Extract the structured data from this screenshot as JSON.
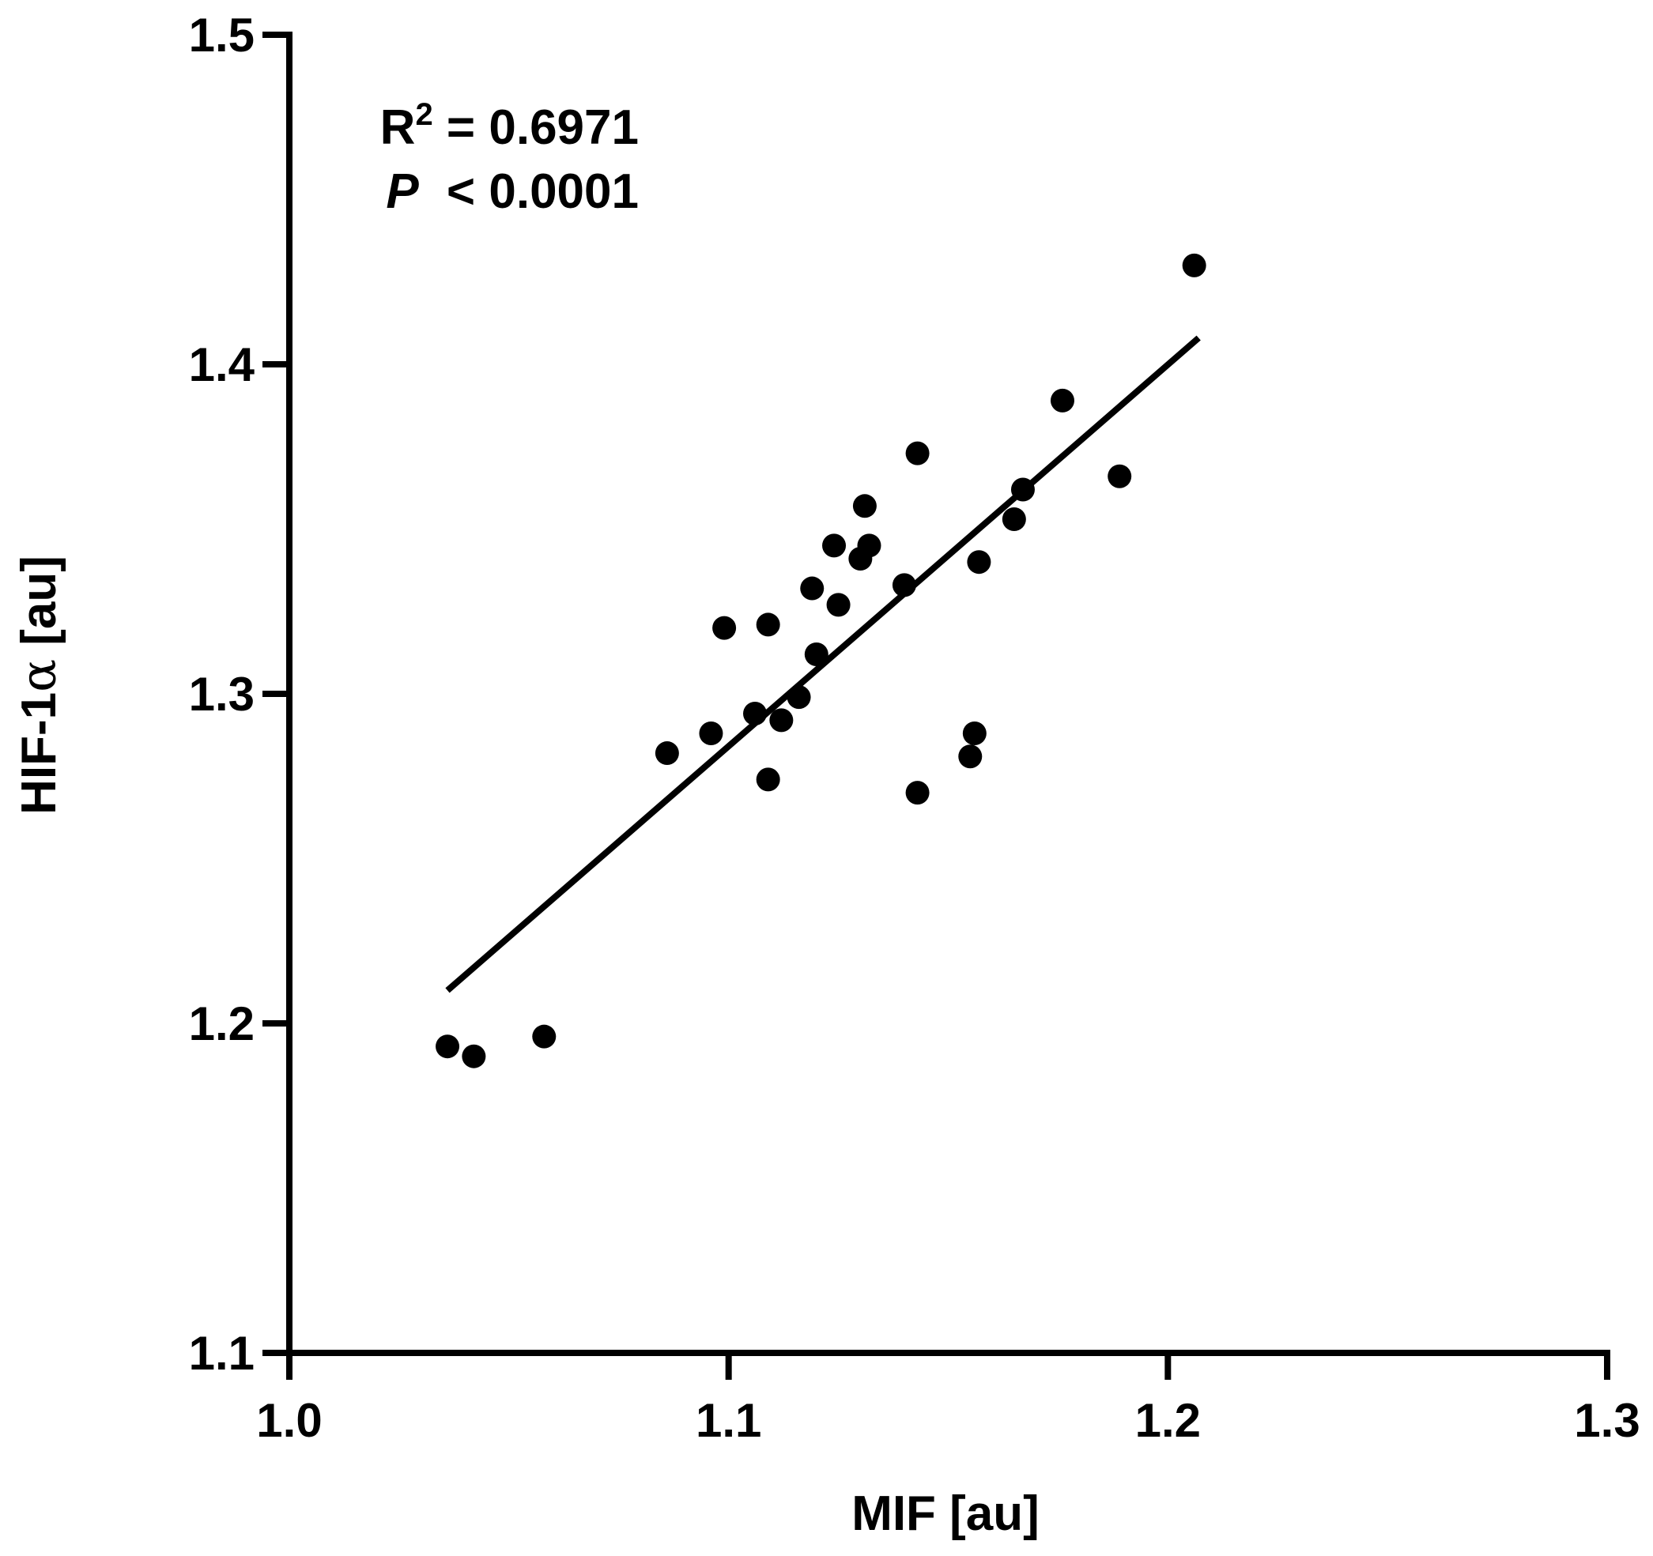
{
  "chart_data": {
    "type": "scatter",
    "xlabel": "MIF [au]",
    "ylabel_prefix": "HIF-1",
    "ylabel_greek": "α",
    "ylabel_suffix": " [au]",
    "xlim": [
      1.0,
      1.3
    ],
    "ylim": [
      1.1,
      1.5
    ],
    "xticks": [
      "1.0",
      "1.1",
      "1.2",
      "1.3"
    ],
    "yticks": [
      "1.1",
      "1.2",
      "1.3",
      "1.4",
      "1.5"
    ],
    "annotation": {
      "r2_label": "R",
      "r2_exp": "2",
      "r2_value": " = 0.6971",
      "p_label": "P",
      "p_value": " < 0.0001"
    },
    "points": [
      {
        "x": 1.036,
        "y": 1.193
      },
      {
        "x": 1.042,
        "y": 1.19
      },
      {
        "x": 1.058,
        "y": 1.196
      },
      {
        "x": 1.086,
        "y": 1.282
      },
      {
        "x": 1.096,
        "y": 1.288
      },
      {
        "x": 1.099,
        "y": 1.32
      },
      {
        "x": 1.106,
        "y": 1.294
      },
      {
        "x": 1.109,
        "y": 1.321
      },
      {
        "x": 1.109,
        "y": 1.274
      },
      {
        "x": 1.112,
        "y": 1.292
      },
      {
        "x": 1.116,
        "y": 1.299
      },
      {
        "x": 1.119,
        "y": 1.332
      },
      {
        "x": 1.12,
        "y": 1.312
      },
      {
        "x": 1.124,
        "y": 1.345
      },
      {
        "x": 1.125,
        "y": 1.327
      },
      {
        "x": 1.13,
        "y": 1.341
      },
      {
        "x": 1.131,
        "y": 1.357
      },
      {
        "x": 1.132,
        "y": 1.345
      },
      {
        "x": 1.14,
        "y": 1.333
      },
      {
        "x": 1.143,
        "y": 1.373
      },
      {
        "x": 1.143,
        "y": 1.27
      },
      {
        "x": 1.155,
        "y": 1.281
      },
      {
        "x": 1.156,
        "y": 1.288
      },
      {
        "x": 1.157,
        "y": 1.34
      },
      {
        "x": 1.165,
        "y": 1.353
      },
      {
        "x": 1.167,
        "y": 1.362
      },
      {
        "x": 1.176,
        "y": 1.389
      },
      {
        "x": 1.189,
        "y": 1.366
      },
      {
        "x": 1.206,
        "y": 1.43
      }
    ],
    "fit_line": {
      "x": [
        1.036,
        1.207
      ],
      "y": [
        1.21,
        1.408
      ]
    }
  }
}
